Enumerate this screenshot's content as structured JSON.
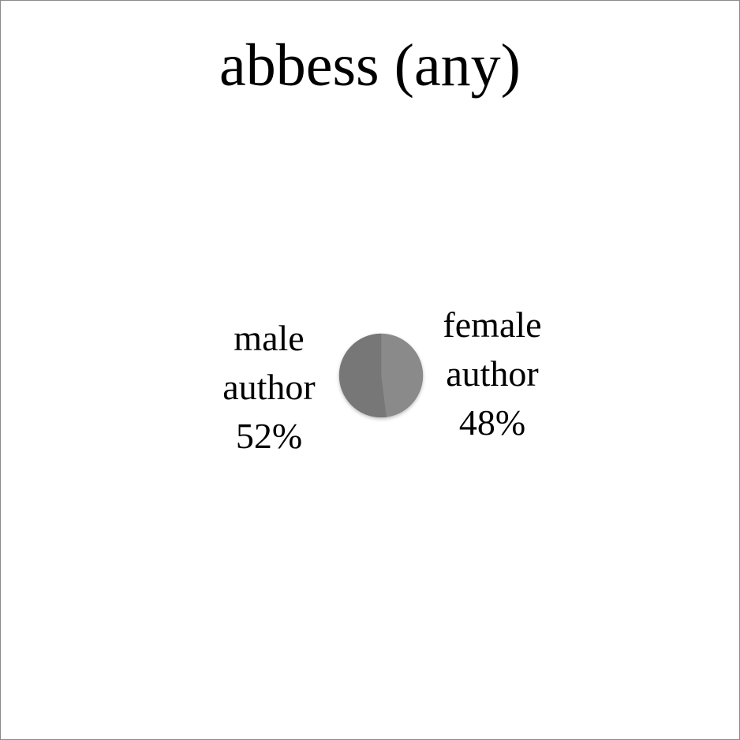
{
  "chart_data": {
    "type": "pie",
    "title": "abbess (any)",
    "slices": [
      {
        "label_lines": [
          "male",
          "author"
        ],
        "percent_text": "52%",
        "value": 52,
        "color": "#777777"
      },
      {
        "label_lines": [
          "female",
          "author"
        ],
        "percent_text": "48%",
        "value": 48,
        "color": "#8a8a8a"
      }
    ],
    "legend": "none",
    "grid": false
  }
}
